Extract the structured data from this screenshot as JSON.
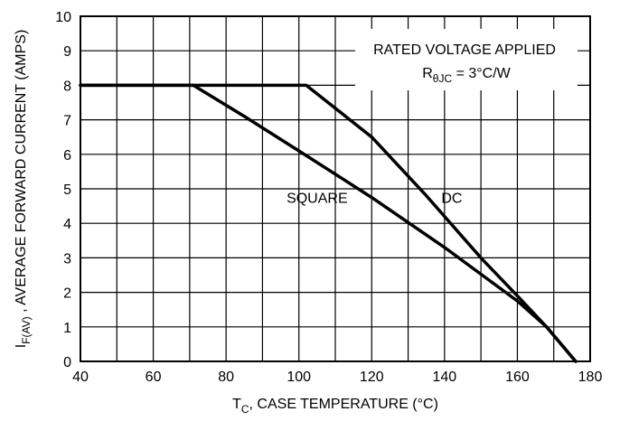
{
  "chart_data": {
    "type": "line",
    "xlabel_main": "T",
    "xlabel_sub": "C",
    "xlabel_rest": ", CASE TEMPERATURE (°C)",
    "ylabel_main": "I",
    "ylabel_sub": "F(AV)",
    "ylabel_rest": " , AVERAGE FORWARD CURRENT (AMPS)",
    "xlim": [
      40,
      180
    ],
    "ylim": [
      0,
      10
    ],
    "x_ticks": [
      "40",
      "60",
      "80",
      "100",
      "120",
      "140",
      "160",
      "180"
    ],
    "y_ticks": [
      "0",
      "1",
      "2",
      "3",
      "4",
      "5",
      "6",
      "7",
      "8",
      "9",
      "10"
    ],
    "grid": true,
    "annotation_line1": "RATED VOLTAGE APPLIED",
    "annotation_line2_main": "R",
    "annotation_line2_sub": "θJC",
    "annotation_line2_rest": " = 3°C/W",
    "series": [
      {
        "name": "SQUARE",
        "x": [
          40,
          71,
          85,
          100,
          120,
          140,
          160,
          168,
          176
        ],
        "y": [
          8,
          8,
          7.1,
          6.1,
          4.75,
          3.3,
          1.75,
          1.0,
          0
        ]
      },
      {
        "name": "DC",
        "x": [
          40,
          102,
          120,
          135,
          150,
          160,
          168,
          176
        ],
        "y": [
          8,
          8,
          6.5,
          4.8,
          3.0,
          1.9,
          1.0,
          0
        ]
      }
    ],
    "series_label_positions": {
      "SQUARE": [
        105,
        4.6
      ],
      "DC": [
        142,
        4.6
      ]
    }
  }
}
